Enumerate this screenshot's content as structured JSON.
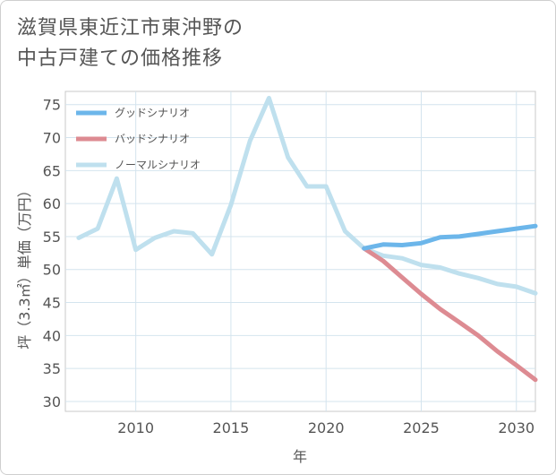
{
  "chart_data": {
    "type": "line",
    "title": "滋賀県東近江市東沖野の\n中古戸建ての価格推移",
    "xlabel": "年",
    "ylabel": "坪（3.3㎡）単価（万円）",
    "xlim": [
      2006.3,
      2031
    ],
    "ylim": [
      28.5,
      77
    ],
    "xticks": [
      2010,
      2015,
      2020,
      2025,
      2030
    ],
    "yticks": [
      30,
      35,
      40,
      45,
      50,
      55,
      60,
      65,
      70,
      75
    ],
    "grid": true,
    "legend_position": "top-left",
    "series": [
      {
        "name": "グッドシナリオ",
        "color": "#6cb6ea",
        "x": [
          2022,
          2023,
          2024,
          2025,
          2026,
          2027,
          2028,
          2029,
          2030,
          2031
        ],
        "values": [
          53.2,
          53.8,
          53.7,
          54.0,
          54.9,
          55.0,
          55.4,
          55.8,
          56.2,
          56.6
        ]
      },
      {
        "name": "バッドシナリオ",
        "color": "#dd8b92",
        "x": [
          2022,
          2023,
          2024,
          2025,
          2026,
          2027,
          2028,
          2029,
          2030,
          2031
        ],
        "values": [
          53.2,
          51.3,
          48.8,
          46.3,
          44.0,
          42.0,
          40.0,
          37.6,
          35.5,
          33.3
        ]
      },
      {
        "name": "ノーマルシナリオ",
        "color": "#bfe0ee",
        "x": [
          2007,
          2008,
          2009,
          2010,
          2011,
          2012,
          2013,
          2014,
          2015,
          2016,
          2017,
          2018,
          2019,
          2020,
          2021,
          2022,
          2023,
          2024,
          2025,
          2026,
          2027,
          2028,
          2029,
          2030,
          2031
        ],
        "values": [
          54.8,
          56.2,
          63.8,
          53.0,
          54.8,
          55.8,
          55.5,
          52.3,
          59.8,
          69.5,
          76.0,
          67.0,
          62.6,
          62.6,
          55.8,
          53.2,
          52.1,
          51.7,
          50.7,
          50.3,
          49.4,
          48.7,
          47.8,
          47.4,
          46.4
        ]
      }
    ]
  }
}
